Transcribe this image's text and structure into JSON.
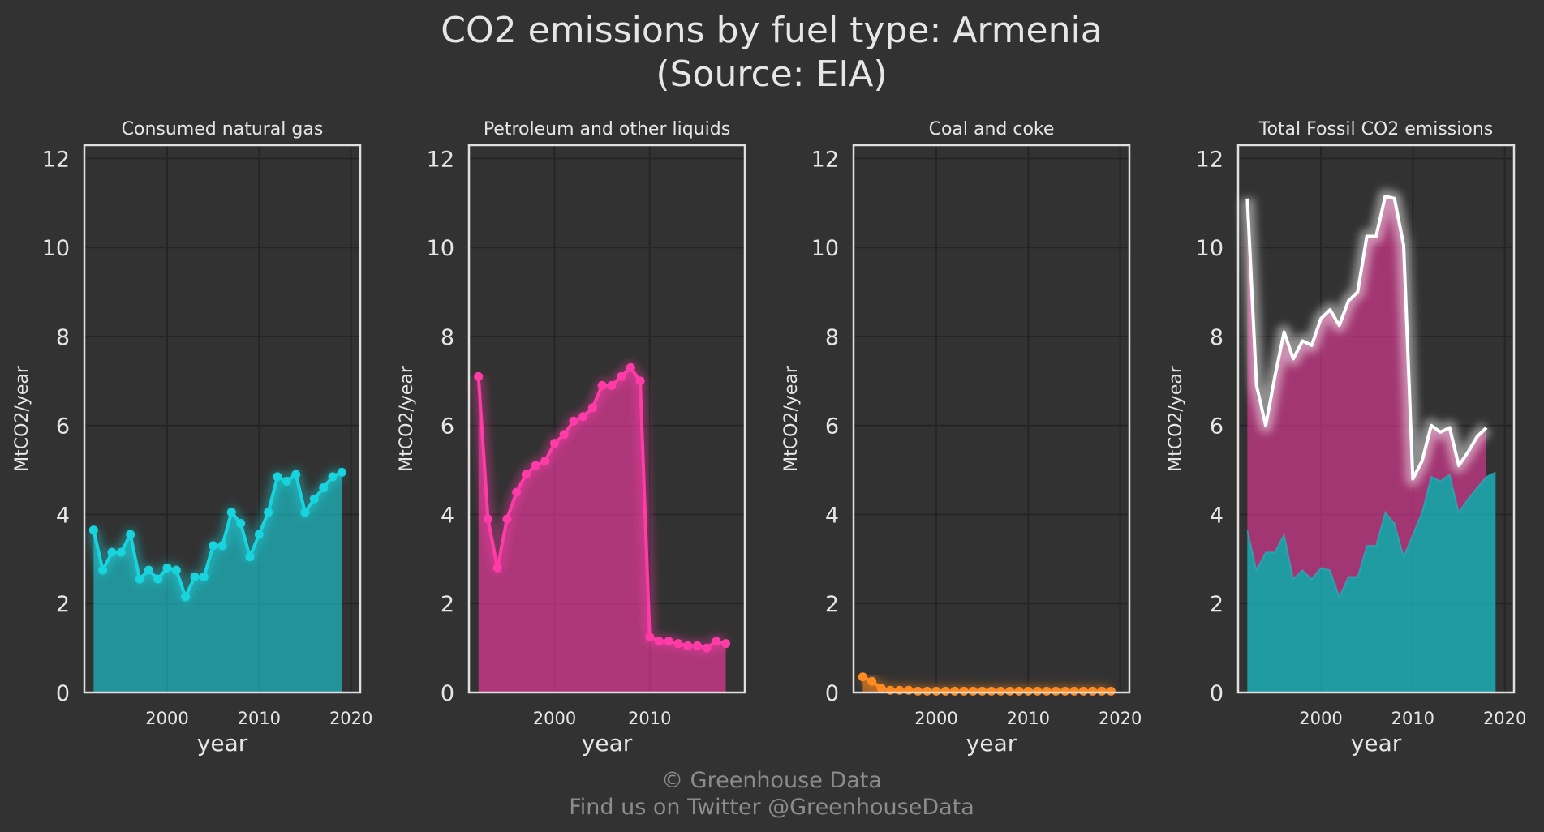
{
  "title_line1": "CO2 emissions by fuel type: Armenia",
  "title_line2": "(Source: EIA)",
  "footer_line1": "© Greenhouse Data",
  "footer_line2": "Find us on Twitter @GreenhouseData",
  "colors": {
    "background": "#323232",
    "grid": "#252525",
    "axes": "#e0e0e0",
    "text": "#e6e6e6",
    "footer_text": "#8c8c8c",
    "gas": "#17d4de",
    "petroleum": "#ff3ba8",
    "coal": "#ff8a1f",
    "total": "#ffffff"
  },
  "chart_data": [
    {
      "type": "area",
      "title": "Consumed natural gas",
      "xlabel": "year",
      "ylabel": "MtCO2/year",
      "xlim": [
        1991,
        2021
      ],
      "ylim": [
        0,
        12.3
      ],
      "xticks": [
        2000,
        2010,
        2020
      ],
      "yticks": [
        0,
        2,
        4,
        6,
        8,
        10,
        12
      ],
      "grid": true,
      "series": [
        {
          "color": "#17d4de",
          "x": [
            1992,
            1993,
            1994,
            1995,
            1996,
            1997,
            1998,
            1999,
            2000,
            2001,
            2002,
            2003,
            2004,
            2005,
            2006,
            2007,
            2008,
            2009,
            2010,
            2011,
            2012,
            2013,
            2014,
            2015,
            2016,
            2017,
            2018,
            2019
          ],
          "values": [
            3.65,
            2.75,
            3.15,
            3.15,
            3.55,
            2.55,
            2.75,
            2.55,
            2.8,
            2.75,
            2.15,
            2.6,
            2.6,
            3.3,
            3.3,
            4.05,
            3.8,
            3.05,
            3.55,
            4.05,
            4.85,
            4.75,
            4.9,
            4.05,
            4.35,
            4.6,
            4.85,
            4.95
          ]
        }
      ]
    },
    {
      "type": "area",
      "title": "Petroleum and other liquids",
      "xlabel": "year",
      "ylabel": "MtCO2/year",
      "xlim": [
        1991,
        2020
      ],
      "ylim": [
        0,
        12.3
      ],
      "xticks": [
        2000,
        2010
      ],
      "yticks": [
        0,
        2,
        4,
        6,
        8,
        10,
        12
      ],
      "grid": true,
      "series": [
        {
          "color": "#ff3ba8",
          "x": [
            1992,
            1993,
            1994,
            1995,
            1996,
            1997,
            1998,
            1999,
            2000,
            2001,
            2002,
            2003,
            2004,
            2005,
            2006,
            2007,
            2008,
            2009,
            2010,
            2011,
            2012,
            2013,
            2014,
            2015,
            2016,
            2017,
            2018
          ],
          "values": [
            7.1,
            3.9,
            2.8,
            3.9,
            4.5,
            4.9,
            5.1,
            5.2,
            5.6,
            5.8,
            6.1,
            6.2,
            6.4,
            6.9,
            6.9,
            7.1,
            7.3,
            7.0,
            1.25,
            1.15,
            1.15,
            1.1,
            1.05,
            1.05,
            1.0,
            1.15,
            1.1
          ]
        }
      ]
    },
    {
      "type": "area",
      "title": "Coal and coke",
      "xlabel": "year",
      "ylabel": "MtCO2/year",
      "xlim": [
        1991,
        2021
      ],
      "ylim": [
        0,
        12.3
      ],
      "xticks": [
        2000,
        2010,
        2020
      ],
      "yticks": [
        0,
        2,
        4,
        6,
        8,
        10,
        12
      ],
      "grid": true,
      "series": [
        {
          "color": "#ff8a1f",
          "x": [
            1992,
            1993,
            1994,
            1995,
            1996,
            1997,
            1998,
            1999,
            2000,
            2001,
            2002,
            2003,
            2004,
            2005,
            2006,
            2007,
            2008,
            2009,
            2010,
            2011,
            2012,
            2013,
            2014,
            2015,
            2016,
            2017,
            2018,
            2019
          ],
          "values": [
            0.35,
            0.25,
            0.1,
            0.05,
            0.05,
            0.05,
            0.03,
            0.03,
            0.03,
            0.03,
            0.03,
            0.03,
            0.03,
            0.03,
            0.03,
            0.03,
            0.03,
            0.03,
            0.03,
            0.03,
            0.03,
            0.03,
            0.03,
            0.03,
            0.03,
            0.03,
            0.03,
            0.03
          ]
        }
      ]
    },
    {
      "type": "area",
      "title": "Total Fossil CO2 emissions",
      "xlabel": "year",
      "ylabel": "MtCO2/year",
      "xlim": [
        1991,
        2021
      ],
      "ylim": [
        0,
        12.3
      ],
      "xticks": [
        2000,
        2010,
        2020
      ],
      "yticks": [
        0,
        2,
        4,
        6,
        8,
        10,
        12
      ],
      "grid": true,
      "stacked": true,
      "series": [
        {
          "color": "#17d4de",
          "x": [
            1992,
            1993,
            1994,
            1995,
            1996,
            1997,
            1998,
            1999,
            2000,
            2001,
            2002,
            2003,
            2004,
            2005,
            2006,
            2007,
            2008,
            2009,
            2010,
            2011,
            2012,
            2013,
            2014,
            2015,
            2016,
            2017,
            2018,
            2019
          ],
          "values": [
            3.65,
            2.75,
            3.15,
            3.15,
            3.55,
            2.55,
            2.75,
            2.55,
            2.8,
            2.75,
            2.15,
            2.6,
            2.6,
            3.3,
            3.3,
            4.05,
            3.8,
            3.05,
            3.55,
            4.05,
            4.85,
            4.75,
            4.9,
            4.05,
            4.35,
            4.6,
            4.85,
            4.95
          ]
        },
        {
          "color": "#ff3ba8",
          "x": [
            1992,
            1993,
            1994,
            1995,
            1996,
            1997,
            1998,
            1999,
            2000,
            2001,
            2002,
            2003,
            2004,
            2005,
            2006,
            2007,
            2008,
            2009,
            2010,
            2011,
            2012,
            2013,
            2014,
            2015,
            2016,
            2017,
            2018
          ],
          "values": [
            7.1,
            3.9,
            2.8,
            3.9,
            4.5,
            4.9,
            5.1,
            5.2,
            5.6,
            5.8,
            6.1,
            6.2,
            6.4,
            6.9,
            6.9,
            7.1,
            7.3,
            7.0,
            1.25,
            1.15,
            1.15,
            1.1,
            1.05,
            1.05,
            1.0,
            1.15,
            1.1
          ]
        }
      ],
      "total_line": {
        "color": "#ffffff",
        "x": [
          1992,
          1993,
          1994,
          1995,
          1996,
          1997,
          1998,
          1999,
          2000,
          2001,
          2002,
          2003,
          2004,
          2005,
          2006,
          2007,
          2008,
          2009,
          2010,
          2011,
          2012,
          2013,
          2014,
          2015,
          2016,
          2017,
          2018
        ],
        "values": [
          11.1,
          6.9,
          6.0,
          7.1,
          8.1,
          7.5,
          7.9,
          7.8,
          8.4,
          8.6,
          8.25,
          8.8,
          9.0,
          10.25,
          10.25,
          11.15,
          11.1,
          10.05,
          4.8,
          5.2,
          6.0,
          5.85,
          5.95,
          5.1,
          5.4,
          5.75,
          5.95
        ]
      }
    }
  ]
}
